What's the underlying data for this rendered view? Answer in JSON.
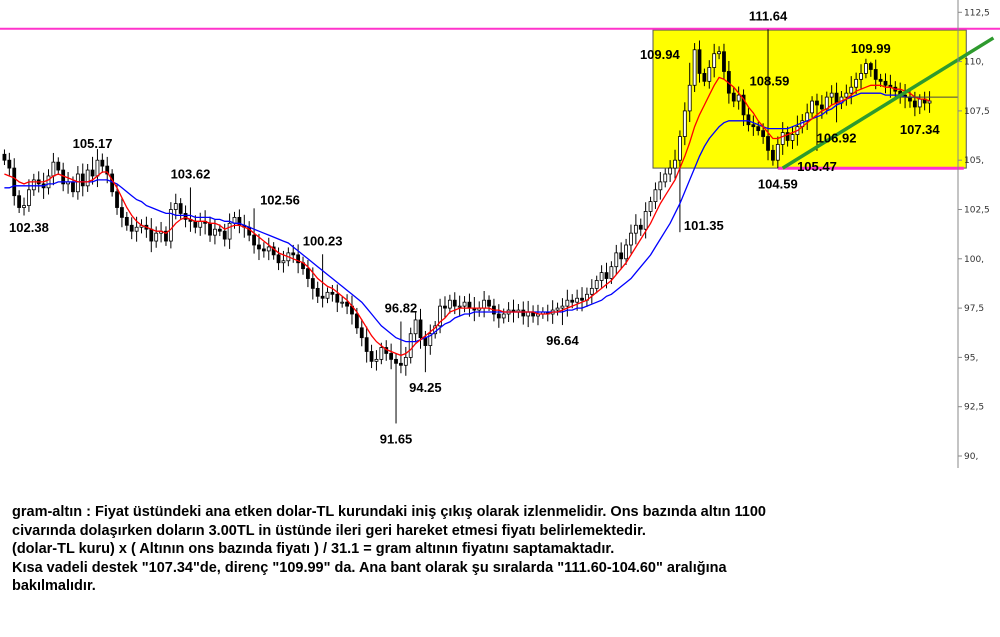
{
  "chart_data": {
    "type": "candlestick",
    "instrument": "gram-altın",
    "ylim": [
      89.5,
      112.8
    ],
    "y_ticks": [
      "112,5",
      "110,",
      "107,5",
      "105,",
      "102,5",
      "100,",
      "97,5",
      "95,",
      "92,5",
      "90,"
    ],
    "y_tick_values": [
      112.5,
      110,
      107.5,
      105,
      102.5,
      100,
      97.5,
      95,
      92.5,
      90
    ],
    "close_series": [
      105.0,
      104.6,
      103.2,
      102.6,
      102.7,
      103.5,
      104.0,
      103.8,
      103.6,
      104.2,
      104.9,
      104.5,
      103.8,
      103.9,
      103.4,
      104.3,
      103.7,
      104.5,
      104.2,
      105.0,
      104.7,
      104.3,
      103.4,
      102.6,
      102.1,
      101.7,
      101.4,
      101.6,
      101.7,
      101.5,
      100.9,
      101.3,
      101.4,
      100.9,
      102.5,
      102.8,
      102.3,
      102.0,
      101.9,
      101.6,
      101.9,
      101.8,
      101.2,
      101.5,
      101.4,
      101.0,
      101.8,
      102.1,
      101.7,
      101.6,
      101.2,
      100.7,
      100.5,
      100.4,
      100.6,
      100.2,
      99.8,
      99.9,
      100.3,
      100.2,
      99.8,
      99.5,
      99.0,
      98.5,
      98.1,
      98.0,
      98.3,
      98.2,
      97.8,
      97.8,
      97.6,
      97.2,
      96.5,
      96.0,
      95.3,
      94.8,
      94.9,
      95.5,
      95.2,
      94.9,
      94.7,
      94.6,
      95.0,
      96.2,
      96.9,
      96.0,
      95.6,
      96.2,
      96.6,
      97.6,
      97.5,
      97.9,
      97.6,
      97.6,
      97.8,
      97.5,
      97.4,
      97.5,
      97.9,
      97.6,
      97.2,
      97.0,
      97.2,
      97.4,
      97.3,
      97.4,
      97.1,
      97.3,
      97.1,
      97.2,
      97.3,
      97.2,
      97.4,
      97.5,
      97.6,
      97.9,
      97.8,
      98.0,
      97.9,
      98.2,
      98.5,
      98.9,
      99.3,
      99.0,
      99.6,
      100.3,
      100.0,
      100.7,
      101.3,
      101.7,
      101.5,
      102.4,
      102.9,
      103.5,
      103.9,
      104.3,
      104.6,
      105.0,
      106.2,
      107.5,
      108.8,
      110.6,
      109.4,
      109.0,
      109.7,
      110.4,
      110.5,
      109.5,
      108.4,
      108.0,
      108.3,
      107.3,
      106.8,
      106.7,
      106.5,
      106.2,
      105.5,
      105.0,
      105.8,
      106.4,
      106.0,
      106.3,
      106.7,
      107.0,
      107.4,
      108.0,
      107.8,
      107.6,
      108.2,
      108.4,
      107.9,
      108.2,
      108.4,
      108.7,
      109.1,
      109.4,
      109.9,
      109.6,
      109.1,
      109.0,
      108.8,
      108.7,
      108.5,
      108.3,
      108.2,
      108.0,
      107.7,
      108.1,
      107.9,
      108.0
    ],
    "ma_short": [
      104.3,
      104.2,
      104.1,
      103.9,
      103.8,
      103.9,
      103.9,
      103.9,
      103.9,
      104.0,
      104.2,
      104.3,
      104.2,
      104.1,
      104.0,
      103.9,
      103.9,
      103.9,
      104.0,
      104.2,
      104.4,
      104.4,
      104.0,
      103.6,
      103.1,
      102.6,
      102.2,
      101.9,
      101.7,
      101.6,
      101.5,
      101.4,
      101.4,
      101.3,
      101.5,
      101.8,
      102.0,
      102.1,
      102.0,
      101.9,
      101.9,
      101.9,
      101.8,
      101.8,
      101.7,
      101.5,
      101.6,
      101.7,
      101.7,
      101.6,
      101.5,
      101.3,
      101.1,
      100.9,
      100.7,
      100.5,
      100.3,
      100.2,
      100.1,
      100.0,
      99.9,
      99.8,
      99.6,
      99.3,
      99.0,
      98.8,
      98.6,
      98.5,
      98.3,
      98.1,
      97.9,
      97.6,
      97.3,
      96.9,
      96.5,
      96.1,
      95.8,
      95.6,
      95.4,
      95.3,
      95.2,
      95.1,
      95.2,
      95.4,
      95.7,
      95.9,
      96.1,
      96.3,
      96.5,
      96.8,
      97.0,
      97.3,
      97.4,
      97.5,
      97.5,
      97.5,
      97.5,
      97.5,
      97.5,
      97.5,
      97.4,
      97.4,
      97.3,
      97.3,
      97.3,
      97.3,
      97.3,
      97.3,
      97.3,
      97.2,
      97.2,
      97.2,
      97.3,
      97.3,
      97.4,
      97.5,
      97.6,
      97.7,
      97.8,
      97.9,
      98.1,
      98.3,
      98.5,
      98.7,
      98.9,
      99.2,
      99.5,
      99.8,
      100.2,
      100.6,
      101.0,
      101.4,
      101.8,
      102.3,
      102.8,
      103.2,
      103.6,
      104.0,
      104.6,
      105.2,
      105.9,
      106.7,
      107.3,
      107.8,
      108.3,
      108.8,
      109.2,
      109.1,
      108.9,
      108.7,
      108.4,
      108.1,
      107.7,
      107.4,
      107.0,
      106.7,
      106.4,
      106.1,
      106.1,
      106.2,
      106.3,
      106.4,
      106.5,
      106.7,
      106.9,
      107.1,
      107.3,
      107.5,
      107.6,
      107.8,
      107.9,
      108.0,
      108.1,
      108.3,
      108.5,
      108.6,
      108.7,
      108.8,
      108.8,
      108.8,
      108.7,
      108.7,
      108.6,
      108.6,
      108.5,
      108.4,
      108.2,
      108.1,
      108.1,
      108.0
    ],
    "ma_long": [
      103.6,
      103.6,
      103.7,
      103.7,
      103.7,
      103.7,
      103.7,
      103.7,
      103.7,
      103.8,
      103.8,
      103.9,
      103.9,
      103.9,
      103.9,
      103.9,
      103.9,
      103.9,
      103.9,
      104.0,
      104.0,
      104.0,
      103.9,
      103.8,
      103.6,
      103.4,
      103.2,
      103.0,
      102.9,
      102.7,
      102.6,
      102.5,
      102.4,
      102.3,
      102.3,
      102.2,
      102.2,
      102.2,
      102.2,
      102.1,
      102.1,
      102.1,
      102.1,
      102.0,
      102.0,
      101.9,
      101.9,
      101.8,
      101.8,
      101.7,
      101.6,
      101.5,
      101.4,
      101.3,
      101.2,
      101.1,
      101.0,
      100.9,
      100.8,
      100.6,
      100.4,
      100.2,
      100.0,
      99.8,
      99.6,
      99.4,
      99.2,
      99.0,
      98.8,
      98.6,
      98.4,
      98.2,
      98.0,
      97.8,
      97.5,
      97.2,
      96.9,
      96.6,
      96.4,
      96.2,
      96.0,
      95.9,
      95.8,
      95.8,
      95.8,
      95.9,
      96.0,
      96.1,
      96.3,
      96.5,
      96.7,
      96.8,
      97.0,
      97.1,
      97.2,
      97.2,
      97.3,
      97.3,
      97.3,
      97.3,
      97.3,
      97.3,
      97.3,
      97.3,
      97.3,
      97.3,
      97.3,
      97.3,
      97.3,
      97.3,
      97.3,
      97.3,
      97.3,
      97.3,
      97.3,
      97.4,
      97.4,
      97.5,
      97.5,
      97.6,
      97.7,
      97.8,
      97.9,
      98.1,
      98.2,
      98.4,
      98.6,
      98.8,
      99.0,
      99.3,
      99.6,
      99.9,
      100.2,
      100.6,
      101.0,
      101.4,
      101.8,
      102.3,
      102.8,
      103.4,
      104.0,
      104.6,
      105.2,
      105.7,
      106.1,
      106.4,
      106.7,
      106.9,
      107.0,
      107.0,
      107.0,
      107.0,
      107.0,
      106.9,
      106.8,
      106.7,
      106.6,
      106.6,
      106.6,
      106.6,
      106.6,
      106.7,
      106.8,
      106.9,
      107.0,
      107.1,
      107.2,
      107.3,
      107.5,
      107.6,
      107.8,
      107.9,
      108.1,
      108.2,
      108.3,
      108.4,
      108.4,
      108.4,
      108.4,
      108.4,
      108.3,
      108.3,
      108.3,
      108.3,
      108.2,
      108.2,
      108.2,
      108.2
    ],
    "annotations": [
      {
        "text": "111.64",
        "x": 156,
        "y": 111.64,
        "pos": "above"
      },
      {
        "text": "109.94",
        "x": 140,
        "y": 109.94,
        "pos": "left-above"
      },
      {
        "text": "108.59",
        "x": 151,
        "y": 108.59,
        "pos": "right-above"
      },
      {
        "text": "109.99",
        "x": 177,
        "y": 109.99,
        "pos": "above"
      },
      {
        "text": "107.34",
        "x": 187,
        "y": 107.34,
        "pos": "below"
      },
      {
        "text": "106.92",
        "x": 170,
        "y": 106.92,
        "pos": "below"
      },
      {
        "text": "105.47",
        "x": 166,
        "y": 105.47,
        "pos": "below"
      },
      {
        "text": "104.59",
        "x": 158,
        "y": 104.59,
        "pos": "below"
      },
      {
        "text": "105.17",
        "x": 18,
        "y": 105.17,
        "pos": "above"
      },
      {
        "text": "102.38",
        "x": 5,
        "y": 102.38,
        "pos": "below"
      },
      {
        "text": "103.62",
        "x": 38,
        "y": 103.62,
        "pos": "above"
      },
      {
        "text": "102.56",
        "x": 51,
        "y": 102.56,
        "pos": "right-above"
      },
      {
        "text": "100.23",
        "x": 65,
        "y": 100.23,
        "pos": "above"
      },
      {
        "text": "96.82",
        "x": 81,
        "y": 96.82,
        "pos": "above"
      },
      {
        "text": "94.25",
        "x": 86,
        "y": 94.25,
        "pos": "below"
      },
      {
        "text": "91.65",
        "x": 80,
        "y": 91.65,
        "pos": "below"
      },
      {
        "text": "96.64",
        "x": 114,
        "y": 96.64,
        "pos": "below"
      },
      {
        "text": "101.35",
        "x": 138,
        "y": 101.35,
        "pos": "right"
      }
    ],
    "resistance_level": 111.64,
    "support_level": 104.59,
    "range_box": {
      "x_from": 133,
      "x_to": 196,
      "y_from": 104.6,
      "y_to": 111.6
    },
    "trendline": {
      "x_from": 159,
      "y_from": 104.6,
      "x_to": 200,
      "y_to": 111.2
    },
    "current_price": 108.2
  },
  "colors": {
    "resistance": "#ff33cc",
    "support": "#ff33cc",
    "box": "#ffff00",
    "ma_short": "#ff0000",
    "ma_long": "#0000ff",
    "trendline": "#2e9a2e",
    "candle": "#000000"
  },
  "caption": {
    "line1": "gram-altın : Fiyat üstündeki ana etken dolar-TL kurundaki iniş çıkış olarak izlenmelidir. Ons bazında altın 1100",
    "line2": "civarında dolaşırken doların 3.00TL in üstünde ileri geri hareket etmesi fiyatı belirlemektedir.",
    "line3": "(dolar-TL kuru) x ( Altının ons bazında fiyatı ) / 31.1 = gram altının fiyatını saptamaktadır.",
    "line4": "Kısa vadeli destek \"107.34\"de, direnç \"109.99\" da. Ana bant olarak şu sıralarda \"111.60-104.60\" aralığına",
    "line5": "bakılmalıdır."
  }
}
